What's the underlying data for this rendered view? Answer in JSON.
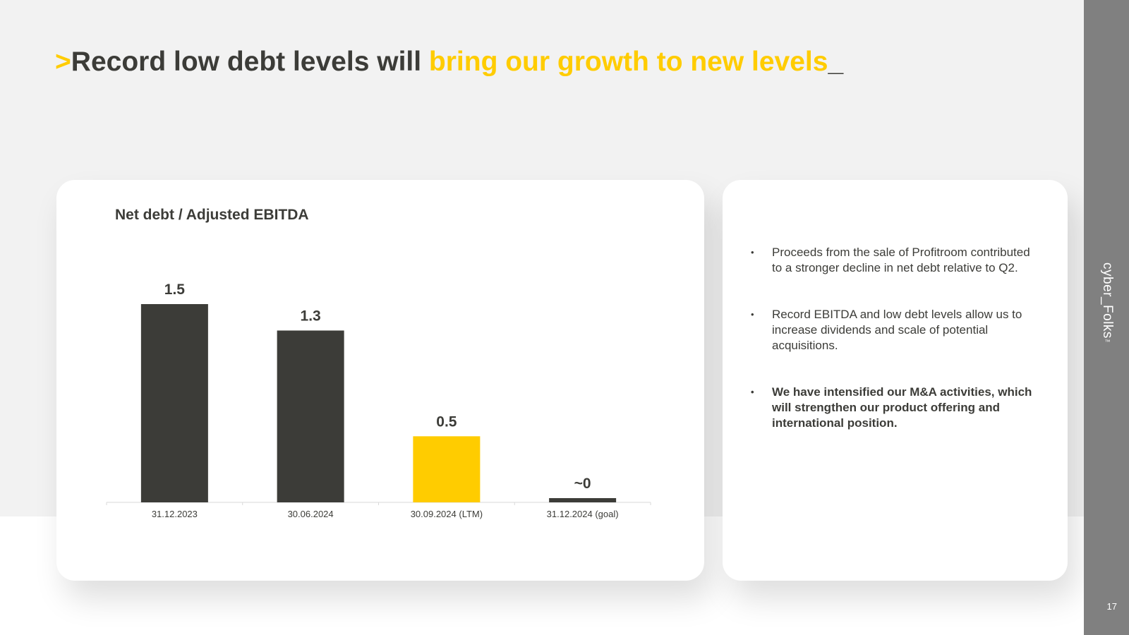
{
  "slide": {
    "title_prefix": ">",
    "title_main": "Record low debt levels will ",
    "title_accent": "bring our growth to new levels",
    "title_suffix": "_",
    "brand": "cyber_Folks",
    "brand_tm": "™",
    "page_number": "17"
  },
  "colors": {
    "accent": "#ffcc00",
    "dark": "#3c3c38",
    "sidebar": "#808080",
    "background": "#f2f2f2"
  },
  "chart_data": {
    "type": "bar",
    "title": "Net debt / Adjusted EBITDA",
    "categories": [
      "31.12.2023",
      "30.06.2024",
      "30.09.2024 (LTM)",
      "31.12.2024 (goal)"
    ],
    "values": [
      1.5,
      1.3,
      0.5,
      0.03
    ],
    "data_labels": [
      "1.5",
      "1.3",
      "0.5",
      "~0"
    ],
    "bar_colors": [
      "#3c3c38",
      "#3c3c38",
      "#ffcc00",
      "#3c3c38"
    ],
    "xlabel": "",
    "ylabel": "",
    "ylim": [
      0,
      1.5
    ],
    "grid": false,
    "legend": "none"
  },
  "bullets": [
    {
      "text": "Proceeds from the sale of Profitroom contributed to a stronger decline in net debt relative to Q2.",
      "bold": false
    },
    {
      "text": "Record EBITDA and low debt levels allow us to increase dividends and scale of potential acquisitions.",
      "bold": false
    },
    {
      "text": "We have intensified our M&A activities, which will strengthen our product offering and international position.",
      "bold": true
    }
  ],
  "bullet_symbol": "•"
}
